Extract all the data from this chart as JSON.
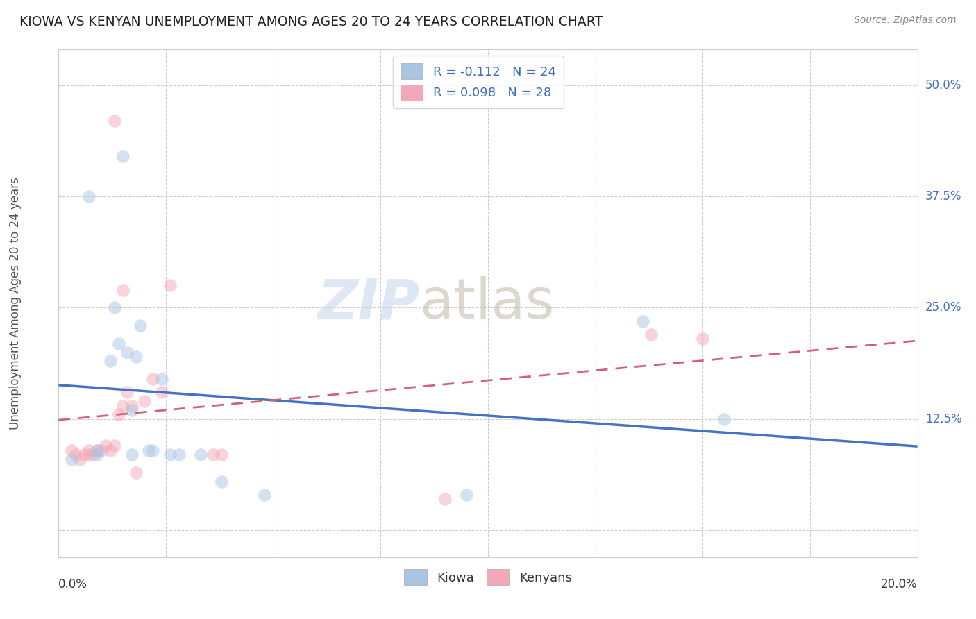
{
  "title": "KIOWA VS KENYAN UNEMPLOYMENT AMONG AGES 20 TO 24 YEARS CORRELATION CHART",
  "source": "Source: ZipAtlas.com",
  "ylabel": "Unemployment Among Ages 20 to 24 years",
  "ytick_labels": [
    "",
    "12.5%",
    "25.0%",
    "37.5%",
    "50.0%"
  ],
  "ytick_values": [
    0.0,
    0.125,
    0.25,
    0.375,
    0.5
  ],
  "xlim": [
    0.0,
    0.2
  ],
  "ylim": [
    -0.03,
    0.54
  ],
  "legend_entries": [
    {
      "label": "R = -0.112   N = 24",
      "color": "#aac5e2"
    },
    {
      "label": "R = 0.098   N = 28",
      "color": "#f2a8b8"
    }
  ],
  "kiowa_color": "#aac5e2",
  "kenyan_color": "#f2a8b8",
  "kiowa_line_color": "#4472c4",
  "kenyan_line_color": "#d45f7a",
  "watermark_zip": "ZIP",
  "watermark_atlas": "atlas",
  "kiowa_x": [
    0.003,
    0.007,
    0.009,
    0.009,
    0.012,
    0.013,
    0.014,
    0.015,
    0.016,
    0.017,
    0.017,
    0.018,
    0.019,
    0.021,
    0.022,
    0.024,
    0.026,
    0.028,
    0.033,
    0.038,
    0.048,
    0.095,
    0.136,
    0.155
  ],
  "kiowa_y": [
    0.08,
    0.375,
    0.085,
    0.09,
    0.19,
    0.25,
    0.21,
    0.42,
    0.2,
    0.135,
    0.085,
    0.195,
    0.23,
    0.09,
    0.09,
    0.17,
    0.085,
    0.085,
    0.085,
    0.055,
    0.04,
    0.04,
    0.235,
    0.125
  ],
  "kenyan_x": [
    0.003,
    0.004,
    0.005,
    0.006,
    0.007,
    0.007,
    0.008,
    0.009,
    0.01,
    0.011,
    0.012,
    0.013,
    0.013,
    0.014,
    0.015,
    0.015,
    0.016,
    0.017,
    0.018,
    0.02,
    0.022,
    0.024,
    0.026,
    0.036,
    0.038,
    0.09,
    0.138,
    0.15
  ],
  "kenyan_y": [
    0.09,
    0.085,
    0.08,
    0.085,
    0.085,
    0.09,
    0.085,
    0.09,
    0.09,
    0.095,
    0.09,
    0.095,
    0.46,
    0.13,
    0.14,
    0.27,
    0.155,
    0.14,
    0.065,
    0.145,
    0.17,
    0.155,
    0.275,
    0.085,
    0.085,
    0.035,
    0.22,
    0.215
  ],
  "background_color": "#ffffff",
  "grid_color": "#cccccc",
  "marker_size": 180,
  "marker_alpha": 0.5,
  "x_ticks": [
    0.0,
    0.025,
    0.05,
    0.075,
    0.1,
    0.125,
    0.15,
    0.175,
    0.2
  ]
}
